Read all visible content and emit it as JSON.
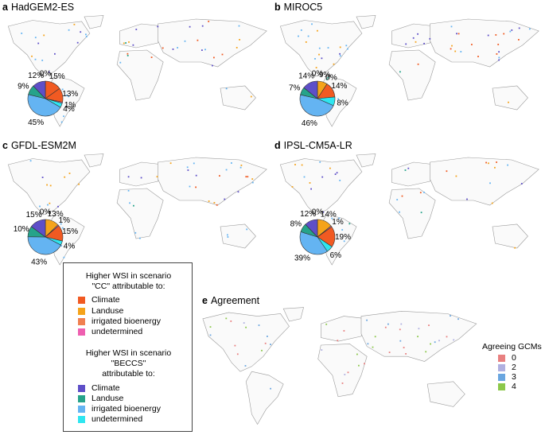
{
  "panels": [
    {
      "letter": "a",
      "title": "HadGEM2-ES",
      "pie": [
        {
          "label": "15%",
          "value": 15,
          "color": "#f15a22"
        },
        {
          "label": "13%",
          "value": 13,
          "color": "#f15a22"
        },
        {
          "label": "1%",
          "value": 1,
          "color": "#ee82c0"
        },
        {
          "label": "4%",
          "value": 4,
          "color": "#2ee6f0"
        },
        {
          "label": "45%",
          "value": 45,
          "color": "#64b4f2"
        },
        {
          "label": "9%",
          "value": 9,
          "color": "#26a38a"
        },
        {
          "label": "12%",
          "value": 12,
          "color": "#5e4fc8"
        },
        {
          "label": "0%",
          "value": 0,
          "color": "#5e4fc8"
        }
      ]
    },
    {
      "letter": "b",
      "title": "MIROC5",
      "pie": [
        {
          "label": "9%",
          "value": 9,
          "color": "#f5a31a"
        },
        {
          "label": "0%",
          "value": 0,
          "color": "#f15a22"
        },
        {
          "label": "14%",
          "value": 14,
          "color": "#f15a22"
        },
        {
          "label": "8%",
          "value": 8,
          "color": "#2ee6f0"
        },
        {
          "label": "46%",
          "value": 46,
          "color": "#64b4f2"
        },
        {
          "label": "7%",
          "value": 7,
          "color": "#26a38a"
        },
        {
          "label": "14%",
          "value": 14,
          "color": "#5e4fc8"
        },
        {
          "label": "0%",
          "value": 0,
          "color": "#5e4fc8"
        }
      ]
    },
    {
      "letter": "c",
      "title": "GFDL-ESM2M",
      "pie": [
        {
          "label": "13%",
          "value": 13,
          "color": "#f5a31a"
        },
        {
          "label": "1%",
          "value": 1,
          "color": "#ee82c0"
        },
        {
          "label": "15%",
          "value": 15,
          "color": "#f15a22"
        },
        {
          "label": "4%",
          "value": 4,
          "color": "#2ee6f0"
        },
        {
          "label": "43%",
          "value": 43,
          "color": "#64b4f2"
        },
        {
          "label": "10%",
          "value": 10,
          "color": "#26a38a"
        },
        {
          "label": "15%",
          "value": 15,
          "color": "#5e4fc8"
        },
        {
          "label": "0%",
          "value": 0,
          "color": "#5e4fc8"
        }
      ]
    },
    {
      "letter": "d",
      "title": "IPSL-CM5A-LR",
      "pie": [
        {
          "label": "14%",
          "value": 14,
          "color": "#f5a31a"
        },
        {
          "label": "1%",
          "value": 1,
          "color": "#ee82c0"
        },
        {
          "label": "19%",
          "value": 19,
          "color": "#f15a22"
        },
        {
          "label": "6%",
          "value": 6,
          "color": "#2ee6f0"
        },
        {
          "label": "39%",
          "value": 39,
          "color": "#64b4f2"
        },
        {
          "label": "8%",
          "value": 8,
          "color": "#26a38a"
        },
        {
          "label": "12%",
          "value": 12,
          "color": "#5e4fc8"
        },
        {
          "label": "0%",
          "value": 0,
          "color": "#5e4fc8"
        }
      ]
    }
  ],
  "agreement": {
    "letter": "e",
    "title": "Agreement"
  },
  "legend": {
    "cc_heading": [
      "Higher WSI in scenario",
      "\"CC\" attributable to:"
    ],
    "cc_items": [
      {
        "label": "Climate",
        "color": "#f15a22"
      },
      {
        "label": "Landuse",
        "color": "#f5a31a"
      },
      {
        "label": "irrigated bioenergy",
        "color": "#f08050"
      },
      {
        "label": "undetermined",
        "color": "#ee5fb0"
      }
    ],
    "beccs_heading": [
      "Higher WSI in scenario",
      "\"BECCS\"",
      "attributable to:"
    ],
    "beccs_items": [
      {
        "label": "Climate",
        "color": "#5e4fc8"
      },
      {
        "label": "Landuse",
        "color": "#26a38a"
      },
      {
        "label": "irrigated bioenergy",
        "color": "#64b4f2"
      },
      {
        "label": "undetermined",
        "color": "#2ee6f0"
      }
    ]
  },
  "agree_legend": {
    "title": "Agreeing GCMs",
    "items": [
      {
        "label": "0",
        "color": "#e88080"
      },
      {
        "label": "2",
        "color": "#b0b0e0"
      },
      {
        "label": "3",
        "color": "#6aa6e0"
      },
      {
        "label": "4",
        "color": "#8cc84b"
      }
    ]
  }
}
